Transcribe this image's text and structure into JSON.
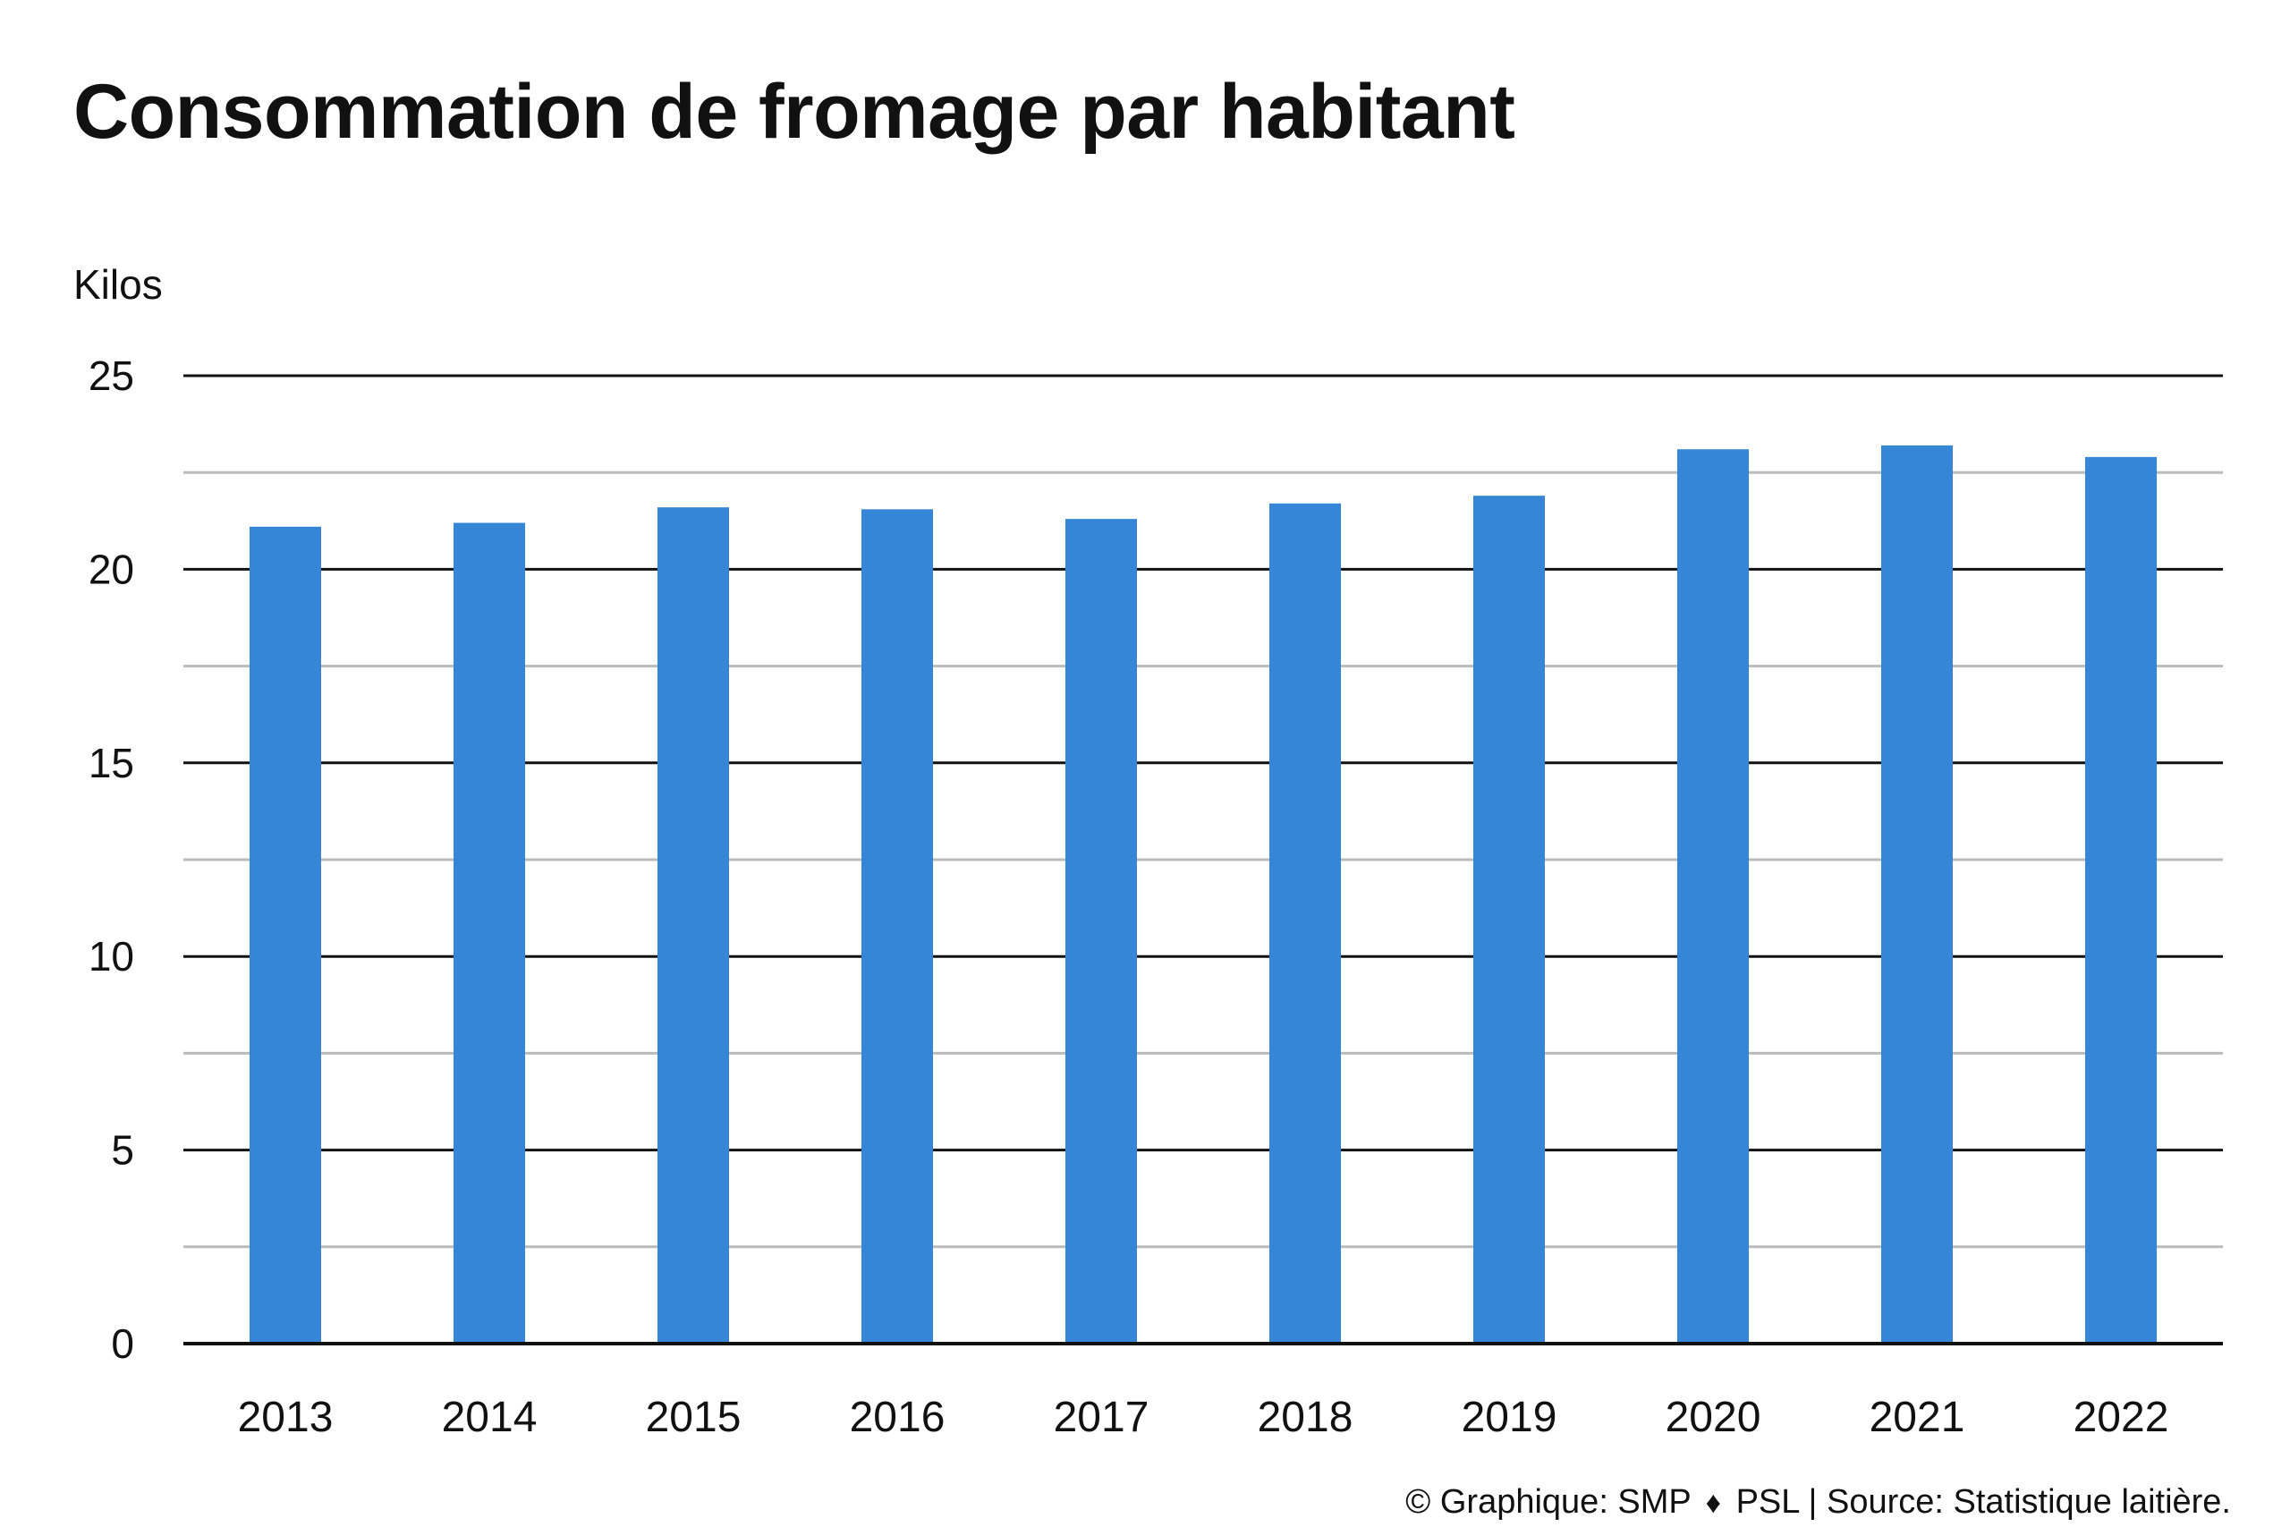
{
  "title": "Consommation de fromage par habitant",
  "unit_label": "Kilos",
  "footer": {
    "credit_prefix": "©",
    "credit_graphic": "Graphique: SMP",
    "separator_icon": "diamond-icon",
    "credit_rest": "PSL | Source: Statistique laitière."
  },
  "colors": {
    "bar": "#3586d6",
    "major_grid": "#111111",
    "minor_grid": "#bbbbbb",
    "text": "#111111"
  },
  "chart_data": {
    "type": "bar",
    "title": "Consommation de fromage par habitant",
    "ylabel": "Kilos",
    "xlabel": "",
    "categories": [
      "2013",
      "2014",
      "2015",
      "2016",
      "2017",
      "2018",
      "2019",
      "2020",
      "2021",
      "2022"
    ],
    "values": [
      21.1,
      21.2,
      21.6,
      21.55,
      21.3,
      21.7,
      21.9,
      23.1,
      23.2,
      22.9
    ],
    "ylim": [
      0,
      25
    ],
    "yticks": [
      0,
      5,
      10,
      15,
      20,
      25
    ],
    "ytick_labels": [
      "0",
      "5",
      "10",
      "15",
      "20",
      "25"
    ],
    "minor_grid_step": 2.5,
    "grid": true,
    "legend": "none"
  }
}
